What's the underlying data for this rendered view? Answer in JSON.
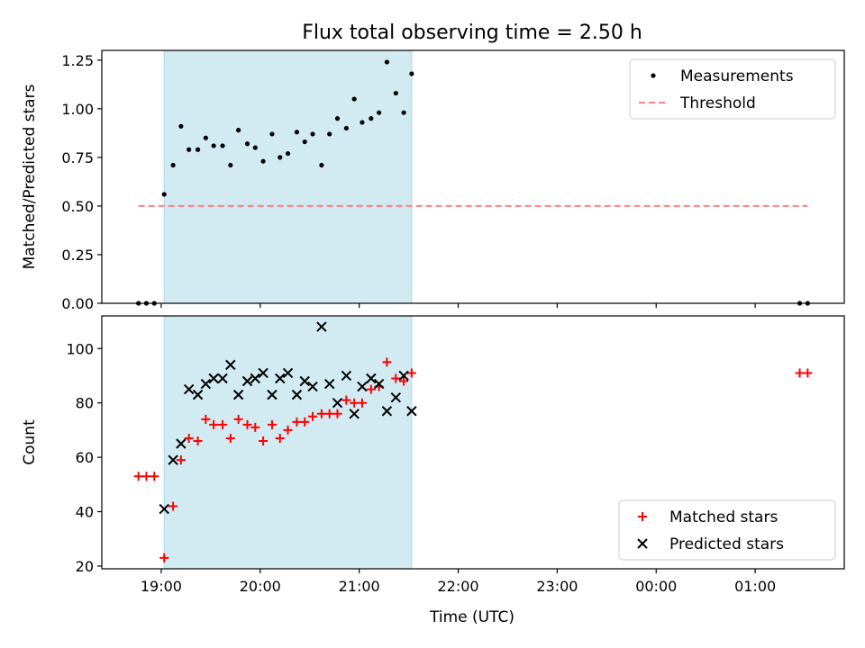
{
  "chart_data": {
    "type": "scatter",
    "title": "Flux total observing time = 2.50 h",
    "xlabel": "Time (UTC)",
    "x_tick_labels": [
      "19:00",
      "20:00",
      "21:00",
      "22:00",
      "23:00",
      "00:00",
      "01:00"
    ],
    "x_ticks_hours": [
      19,
      20,
      21,
      22,
      23,
      24,
      25
    ],
    "xlim_hours": [
      18.4,
      25.9
    ],
    "shaded_span_hours": [
      19.03,
      21.53
    ],
    "shade_color": "#add8e6",
    "panels": [
      {
        "id": "ratio",
        "ylabel": "Matched/Predicted stars",
        "ylim": [
          0,
          1.3
        ],
        "y_ticks": [
          0.0,
          0.25,
          0.5,
          0.75,
          1.0,
          1.25
        ],
        "y_tick_labels": [
          "0.00",
          "0.25",
          "0.50",
          "0.75",
          "1.00",
          "1.25"
        ],
        "legend_position": "upper-right",
        "series": [
          {
            "name": "Measurements",
            "marker": "dot",
            "color": "#000000",
            "points": [
              [
                18.77,
                0.0
              ],
              [
                18.85,
                0.0
              ],
              [
                18.93,
                0.0
              ],
              [
                19.03,
                0.56
              ],
              [
                19.12,
                0.71
              ],
              [
                19.2,
                0.91
              ],
              [
                19.28,
                0.79
              ],
              [
                19.37,
                0.79
              ],
              [
                19.45,
                0.85
              ],
              [
                19.53,
                0.81
              ],
              [
                19.62,
                0.81
              ],
              [
                19.7,
                0.71
              ],
              [
                19.78,
                0.89
              ],
              [
                19.87,
                0.82
              ],
              [
                19.95,
                0.8
              ],
              [
                20.03,
                0.73
              ],
              [
                20.12,
                0.87
              ],
              [
                20.2,
                0.75
              ],
              [
                20.28,
                0.77
              ],
              [
                20.37,
                0.88
              ],
              [
                20.45,
                0.83
              ],
              [
                20.53,
                0.87
              ],
              [
                20.62,
                0.71
              ],
              [
                20.7,
                0.87
              ],
              [
                20.78,
                0.95
              ],
              [
                20.87,
                0.9
              ],
              [
                20.95,
                1.05
              ],
              [
                21.03,
                0.93
              ],
              [
                21.12,
                0.95
              ],
              [
                21.2,
                0.98
              ],
              [
                21.28,
                1.24
              ],
              [
                21.37,
                1.08
              ],
              [
                21.45,
                0.98
              ],
              [
                21.53,
                1.18
              ],
              [
                25.45,
                0.0
              ],
              [
                25.53,
                0.0
              ]
            ]
          },
          {
            "name": "Threshold",
            "marker": "dashed-line",
            "color": "#ff7f7f",
            "x_range": [
              18.77,
              25.53
            ],
            "y": 0.5
          }
        ]
      },
      {
        "id": "counts",
        "ylabel": "Count",
        "ylim": [
          19,
          112
        ],
        "y_ticks": [
          20,
          40,
          60,
          80,
          100
        ],
        "y_tick_labels": [
          "20",
          "40",
          "60",
          "80",
          "100"
        ],
        "legend_position": "lower-right",
        "series": [
          {
            "name": "Matched stars",
            "marker": "plus",
            "color": "#ff0000",
            "points": [
              [
                18.77,
                53
              ],
              [
                18.85,
                53
              ],
              [
                18.93,
                53
              ],
              [
                19.03,
                23
              ],
              [
                19.12,
                42
              ],
              [
                19.2,
                59
              ],
              [
                19.28,
                67
              ],
              [
                19.37,
                66
              ],
              [
                19.45,
                74
              ],
              [
                19.53,
                72
              ],
              [
                19.62,
                72
              ],
              [
                19.7,
                67
              ],
              [
                19.78,
                74
              ],
              [
                19.87,
                72
              ],
              [
                19.95,
                71
              ],
              [
                20.03,
                66
              ],
              [
                20.12,
                72
              ],
              [
                20.2,
                67
              ],
              [
                20.28,
                70
              ],
              [
                20.37,
                73
              ],
              [
                20.45,
                73
              ],
              [
                20.53,
                75
              ],
              [
                20.62,
                76
              ],
              [
                20.7,
                76
              ],
              [
                20.78,
                76
              ],
              [
                20.87,
                81
              ],
              [
                20.95,
                80
              ],
              [
                21.03,
                80
              ],
              [
                21.12,
                85
              ],
              [
                21.2,
                86
              ],
              [
                21.28,
                95
              ],
              [
                21.37,
                89
              ],
              [
                21.45,
                88
              ],
              [
                21.53,
                91
              ],
              [
                25.45,
                91
              ],
              [
                25.53,
                91
              ]
            ]
          },
          {
            "name": "Predicted stars",
            "marker": "x",
            "color": "#000000",
            "points": [
              [
                19.03,
                41
              ],
              [
                19.12,
                59
              ],
              [
                19.2,
                65
              ],
              [
                19.28,
                85
              ],
              [
                19.37,
                83
              ],
              [
                19.45,
                87
              ],
              [
                19.53,
                89
              ],
              [
                19.62,
                89
              ],
              [
                19.7,
                94
              ],
              [
                19.78,
                83
              ],
              [
                19.87,
                88
              ],
              [
                19.95,
                89
              ],
              [
                20.03,
                91
              ],
              [
                20.12,
                83
              ],
              [
                20.2,
                89
              ],
              [
                20.28,
                91
              ],
              [
                20.37,
                83
              ],
              [
                20.45,
                88
              ],
              [
                20.53,
                86
              ],
              [
                20.62,
                108
              ],
              [
                20.7,
                87
              ],
              [
                20.78,
                80
              ],
              [
                20.87,
                90
              ],
              [
                20.95,
                76
              ],
              [
                21.03,
                86
              ],
              [
                21.12,
                89
              ],
              [
                21.2,
                87
              ],
              [
                21.28,
                77
              ],
              [
                21.37,
                82
              ],
              [
                21.45,
                90
              ],
              [
                21.53,
                77
              ]
            ]
          }
        ]
      }
    ]
  }
}
